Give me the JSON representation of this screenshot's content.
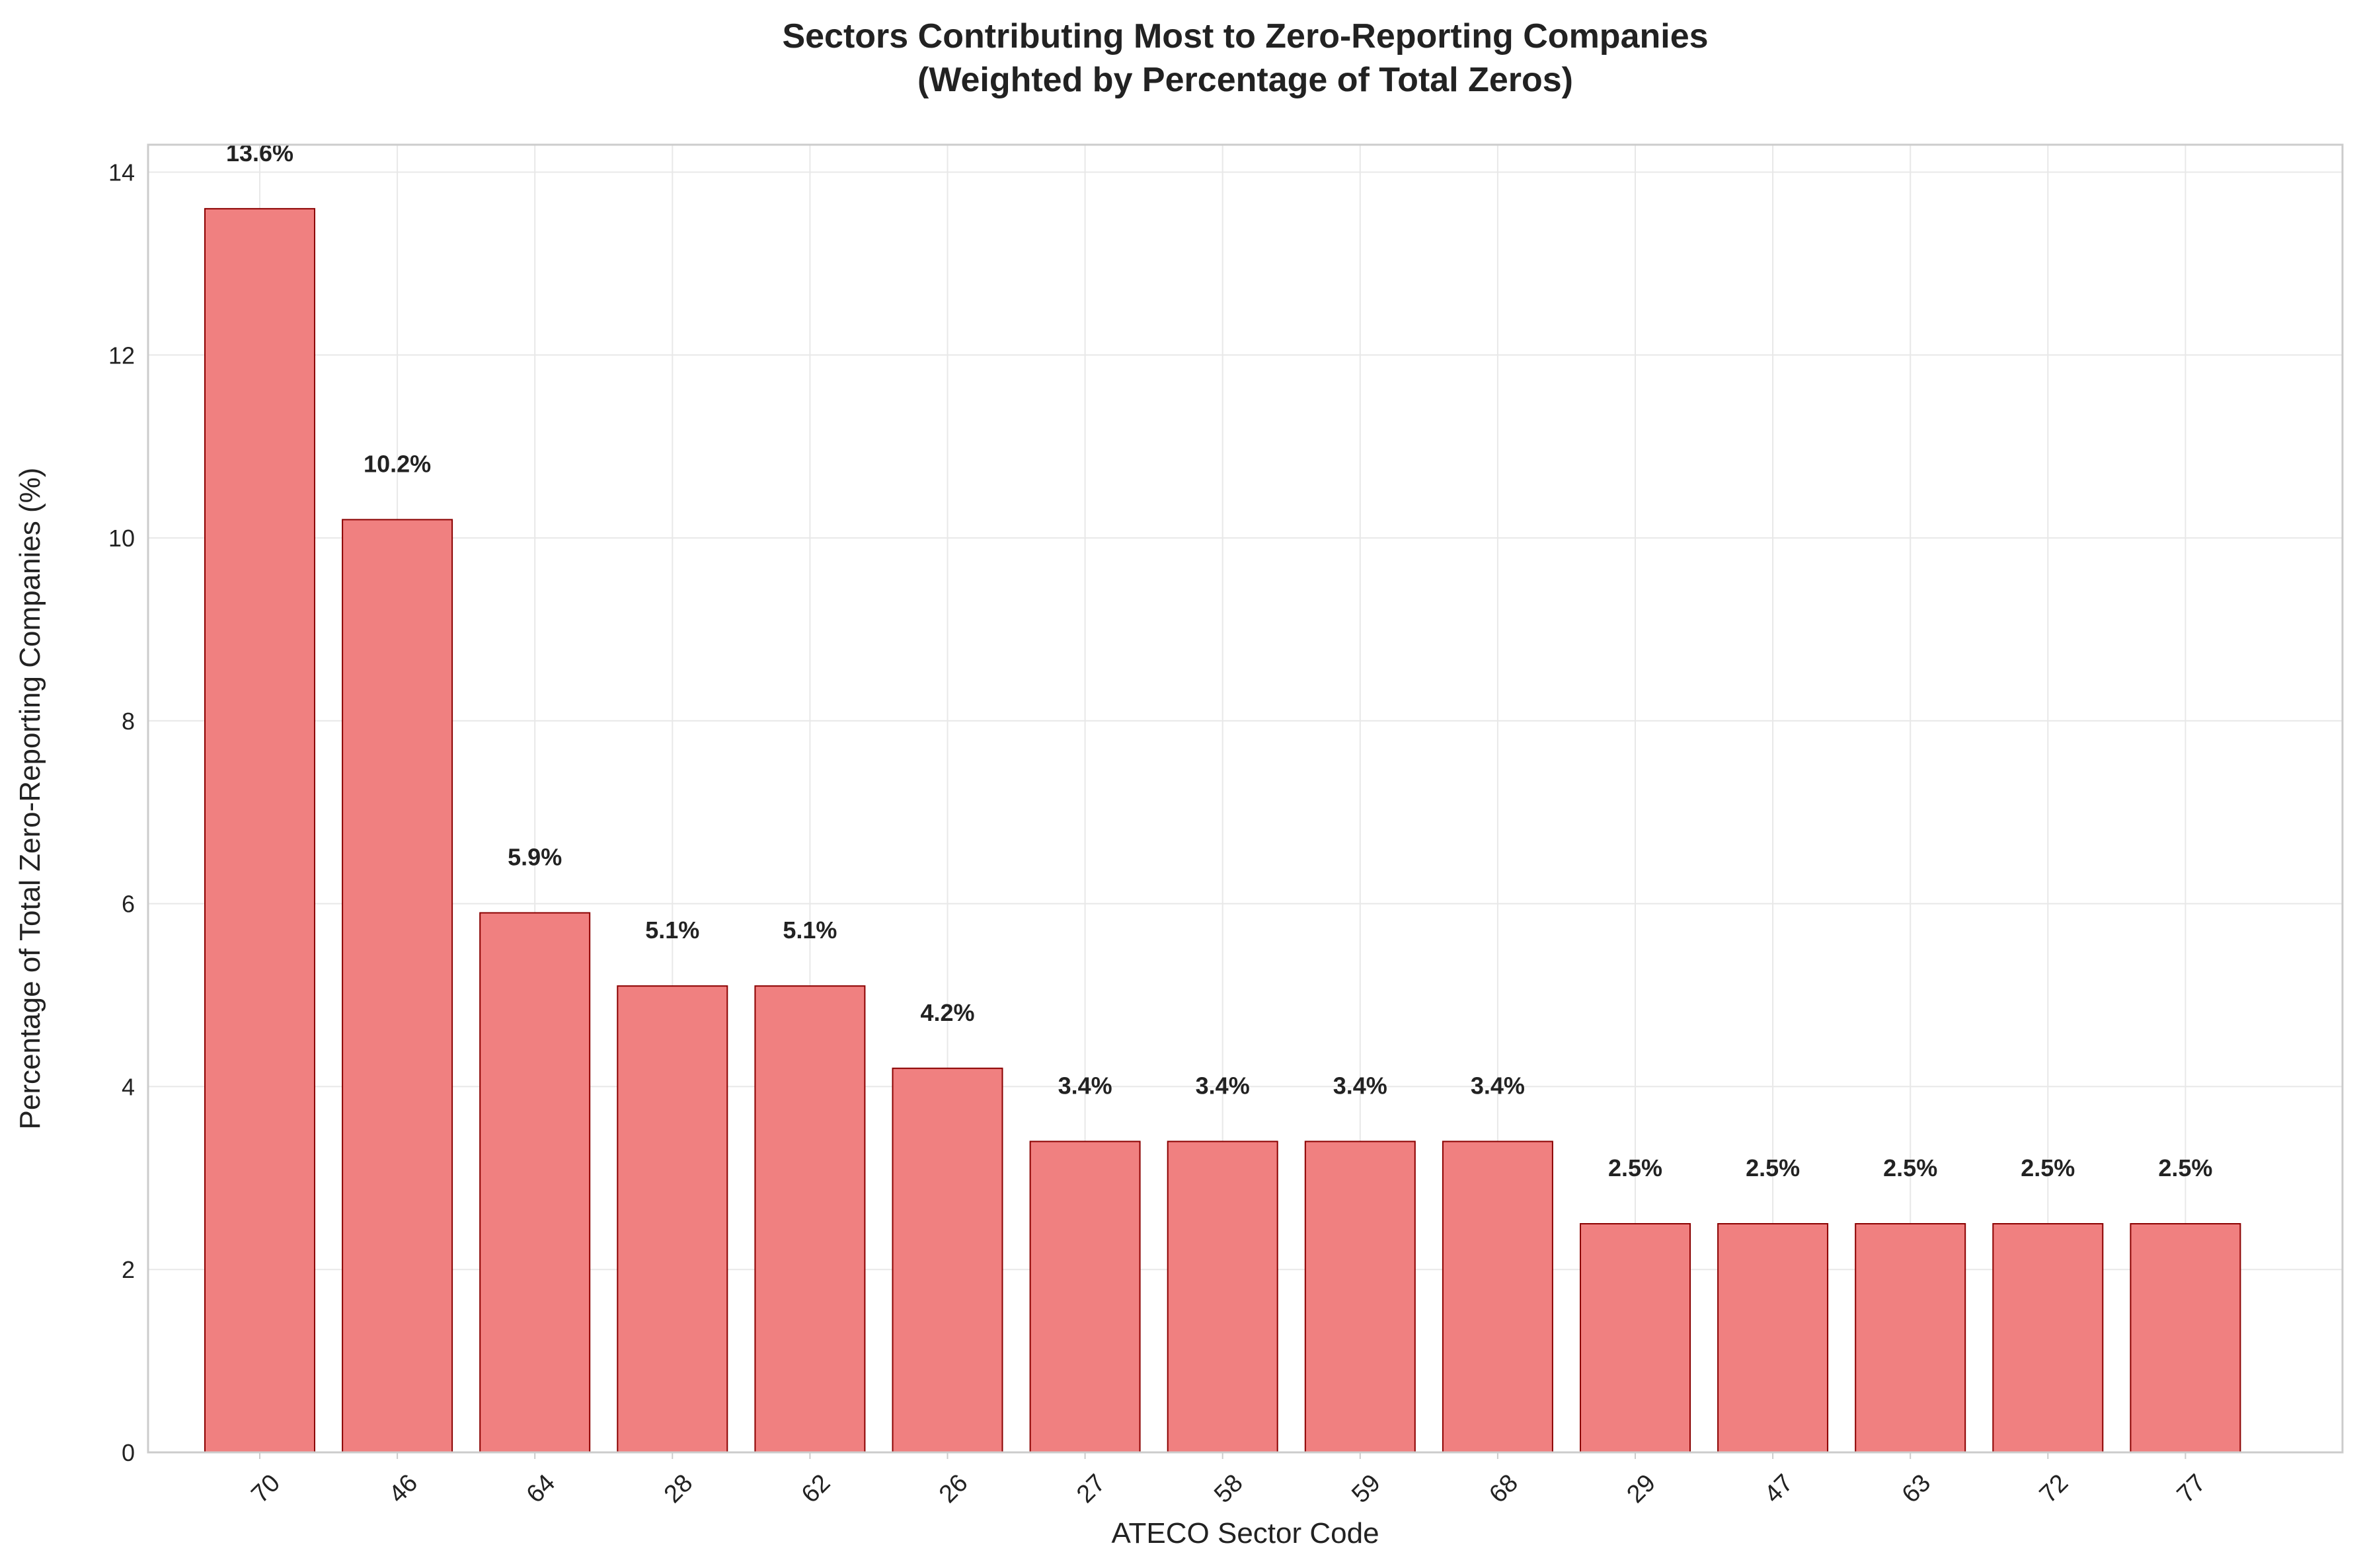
{
  "chart_data": {
    "type": "bar",
    "title": "Sectors Contributing Most to Zero-Reporting Companies",
    "subtitle": "(Weighted by Percentage of Total Zeros)",
    "xlabel": "ATECO Sector Code",
    "ylabel": "Percentage of Total Zero-Reporting Companies (%)",
    "categories": [
      "70",
      "46",
      "64",
      "28",
      "62",
      "26",
      "27",
      "58",
      "59",
      "68",
      "29",
      "47",
      "63",
      "72",
      "77"
    ],
    "values": [
      13.6,
      10.2,
      5.9,
      5.1,
      5.1,
      4.2,
      3.4,
      3.4,
      3.4,
      3.4,
      2.5,
      2.5,
      2.5,
      2.5,
      2.5
    ],
    "data_labels": [
      "13.6%",
      "10.2%",
      "5.9%",
      "5.1%",
      "5.1%",
      "4.2%",
      "3.4%",
      "3.4%",
      "3.4%",
      "3.4%",
      "2.5%",
      "2.5%",
      "2.5%",
      "2.5%",
      "2.5%"
    ],
    "yticks": [
      0,
      2,
      4,
      6,
      8,
      10,
      12,
      14
    ],
    "ylim": [
      0,
      14.3
    ],
    "grid": true,
    "bar_color": "#f08080",
    "bar_edge_color": "#8b0000"
  }
}
